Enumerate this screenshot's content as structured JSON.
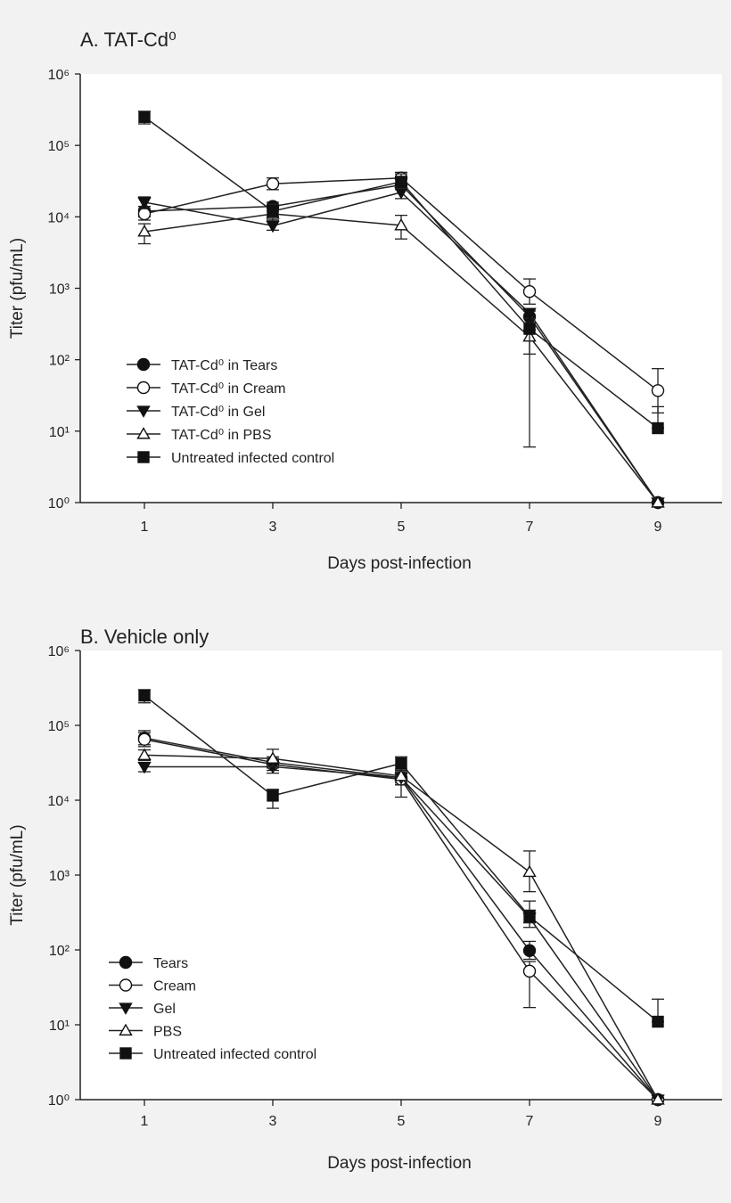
{
  "chart_data": [
    {
      "type": "line",
      "title": "A.  TAT-Cd⁰",
      "xlabel": "Days post-infection",
      "ylabel": "Titer (pfu/mL)",
      "yscale": "log",
      "ylim": [
        1,
        1000000
      ],
      "xlim": [
        0,
        10
      ],
      "x": [
        1,
        3,
        5,
        7,
        9
      ],
      "xticks": [
        "1",
        "3",
        "5",
        "7",
        "9"
      ],
      "yticks": [
        "10⁰",
        "10¹",
        "10²",
        "10³",
        "10⁴",
        "10⁵",
        "10⁶"
      ],
      "grid": false,
      "legend_position": "lower-left",
      "series": [
        {
          "name": "TAT-Cd⁰ in Tears",
          "marker": "circle-filled",
          "values": [
            12000,
            14000,
            28000,
            400,
            1
          ],
          "err_hi": [
            14000,
            16000,
            34000,
            480,
            1
          ],
          "err_lo": [
            10000,
            12000,
            24000,
            330,
            1
          ]
        },
        {
          "name": "TAT-Cd⁰ in Cream",
          "marker": "circle-open",
          "values": [
            11000,
            29000,
            35000,
            900,
            37
          ],
          "err_hi": [
            14000,
            35000,
            42000,
            1350,
            75
          ],
          "err_lo": [
            9000,
            24000,
            29000,
            600,
            18
          ]
        },
        {
          "name": "TAT-Cd⁰ in Gel",
          "marker": "triangle-down-filled",
          "values": [
            16000,
            7500,
            22000,
            450,
            1
          ],
          "err_hi": [
            19000,
            9000,
            27000,
            520,
            1
          ],
          "err_lo": [
            13000,
            6500,
            18000,
            380,
            1
          ]
        },
        {
          "name": "TAT-Cd⁰ in PBS",
          "marker": "triangle-up-open",
          "values": [
            6200,
            11000,
            7600,
            210,
            1
          ],
          "err_hi": [
            8000,
            13000,
            10500,
            260,
            1
          ],
          "err_lo": [
            4200,
            9000,
            4900,
            6,
            1
          ]
        },
        {
          "name": "Untreated infected control",
          "marker": "square-filled",
          "values": [
            250000,
            12000,
            31000,
            270,
            11
          ],
          "err_hi": [
            300000,
            15000,
            40000,
            330,
            22
          ],
          "err_lo": [
            200000,
            10000,
            25000,
            120,
            11
          ]
        }
      ]
    },
    {
      "type": "line",
      "title": "B. Vehicle only",
      "xlabel": "Days post-infection",
      "ylabel": "Titer (pfu/mL)",
      "yscale": "log",
      "ylim": [
        1,
        1000000
      ],
      "xlim": [
        0,
        10
      ],
      "x": [
        1,
        3,
        5,
        7,
        9
      ],
      "xticks": [
        "1",
        "3",
        "5",
        "7",
        "9"
      ],
      "yticks": [
        "10⁰",
        "10¹",
        "10²",
        "10³",
        "10⁴",
        "10⁵",
        "10⁶"
      ],
      "grid": false,
      "legend_position": "lower-left",
      "series": [
        {
          "name": "Tears",
          "marker": "circle-filled",
          "values": [
            68000,
            32000,
            20000,
            98,
            1
          ],
          "err_hi": [
            85000,
            38000,
            24000,
            130,
            1
          ],
          "err_lo": [
            55000,
            27000,
            17000,
            75,
            1
          ]
        },
        {
          "name": "Cream",
          "marker": "circle-open",
          "values": [
            65000,
            30000,
            19000,
            52,
            1
          ],
          "err_hi": [
            80000,
            36000,
            23000,
            70,
            1
          ],
          "err_lo": [
            52000,
            25000,
            16000,
            17,
            1
          ]
        },
        {
          "name": "Gel",
          "marker": "triangle-down-filled",
          "values": [
            28000,
            28000,
            20000,
            270,
            1
          ],
          "err_hi": [
            32000,
            33000,
            24000,
            450,
            1
          ],
          "err_lo": [
            24000,
            23000,
            16000,
            200,
            1
          ]
        },
        {
          "name": "PBS",
          "marker": "triangle-up-open",
          "values": [
            40000,
            36000,
            21000,
            1100,
            1
          ],
          "err_hi": [
            47000,
            48000,
            26000,
            2100,
            1
          ],
          "err_lo": [
            34000,
            28000,
            11000,
            600,
            1
          ]
        },
        {
          "name": "Untreated infected control",
          "marker": "square-filled",
          "values": [
            250000,
            11500,
            31000,
            280,
            11
          ],
          "err_hi": [
            300000,
            14000,
            38000,
            340,
            22
          ],
          "err_lo": [
            200000,
            7800,
            25000,
            230,
            11
          ]
        }
      ]
    }
  ]
}
